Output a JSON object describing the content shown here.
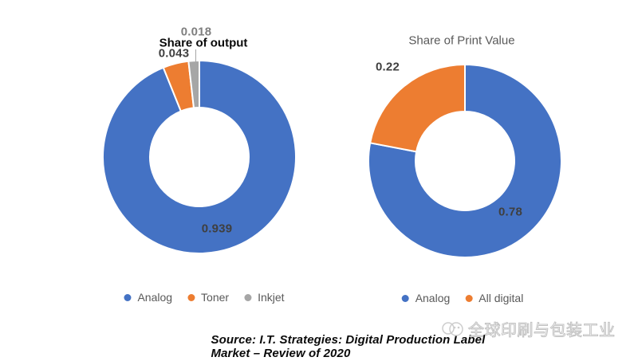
{
  "chart_data": [
    {
      "type": "pie",
      "subtype": "donut",
      "title": "Share of output",
      "labels": [
        "Analog",
        "Toner",
        "Inkjet"
      ],
      "values": [
        0.939,
        0.043,
        0.018
      ],
      "colors": [
        "#4472C4",
        "#ED7D31",
        "#A6A6A6"
      ],
      "hole_ratio": 0.51,
      "start_angle_deg": 0,
      "direction": "clockwise",
      "legend_position": "bottom",
      "data_labels_shown": [
        "0.939",
        "0.043",
        "0.018"
      ]
    },
    {
      "type": "pie",
      "subtype": "donut",
      "title": "Share of Print Value",
      "labels": [
        "Analog",
        "All digital"
      ],
      "values": [
        0.78,
        0.22
      ],
      "colors": [
        "#4472C4",
        "#ED7D31"
      ],
      "hole_ratio": 0.52,
      "start_angle_deg": 0,
      "direction": "clockwise",
      "legend_position": "bottom",
      "data_labels_shown": [
        "0.78",
        "0.22"
      ]
    }
  ],
  "colors": {
    "analog_blue": "#4472C4",
    "toner_orange": "#ED7D31",
    "inkjet_gray": "#A6A6A6",
    "data_label_dark": "#3f3f3f",
    "legend_text": "#595959",
    "watermark_gray": "#c2c2c2"
  },
  "source": {
    "text": "Source: I.T. Strategies: Digital Production Label Market – Review of 2020"
  },
  "watermark": {
    "text": "全球印刷与包装工业"
  }
}
